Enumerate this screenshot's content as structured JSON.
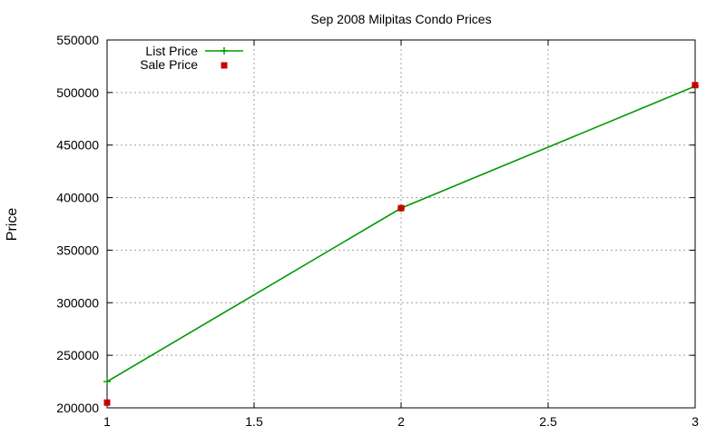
{
  "chart_data": {
    "type": "line",
    "title": "Sep 2008 Milpitas Condo Prices",
    "xlabel": "",
    "ylabel": "Price",
    "xlim": [
      1,
      3
    ],
    "ylim": [
      200000,
      550000
    ],
    "x_ticks": [
      1,
      1.5,
      2,
      2.5,
      3
    ],
    "x_tick_labels": [
      "1",
      "1.5",
      "2",
      "2.5",
      "3"
    ],
    "y_ticks": [
      200000,
      250000,
      300000,
      350000,
      400000,
      450000,
      500000,
      550000
    ],
    "y_tick_labels": [
      "200000",
      "250000",
      "300000",
      "350000",
      "400000",
      "450000",
      "500000",
      "550000"
    ],
    "grid": true,
    "legend_position": "top-left",
    "series": [
      {
        "name": "List Price",
        "style": "linespoints",
        "marker": "plus",
        "color": "#009900",
        "x": [
          1,
          2,
          3
        ],
        "y": [
          225000,
          390000,
          506000
        ]
      },
      {
        "name": "Sale Price",
        "style": "points",
        "marker": "square",
        "color": "#cc0000",
        "x": [
          1,
          2,
          3
        ],
        "y": [
          205000,
          390000,
          507000
        ]
      }
    ]
  }
}
